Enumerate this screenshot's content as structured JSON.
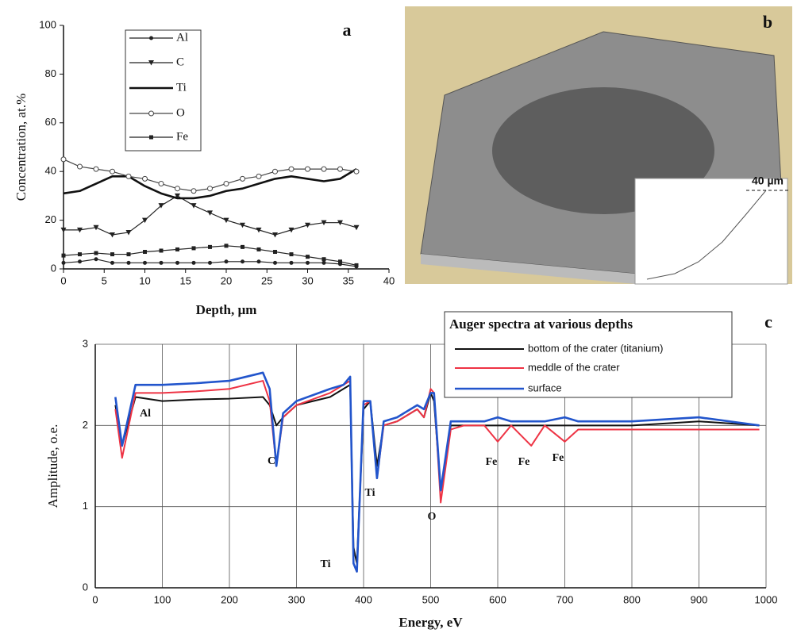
{
  "chart_data": [
    {
      "type": "line",
      "panel_label": "a",
      "xlabel": "Depth, µm",
      "ylabel": "Concentration, at.%",
      "x": [
        0,
        2,
        4,
        6,
        8,
        10,
        12,
        14,
        16,
        18,
        20,
        22,
        24,
        26,
        28,
        30,
        32,
        34,
        36
      ],
      "xlim": [
        0,
        40
      ],
      "xticks": [
        0,
        5,
        10,
        15,
        20,
        25,
        30,
        35,
        40
      ],
      "ylim": [
        0,
        100
      ],
      "yticks": [
        0,
        20,
        40,
        60,
        80,
        100
      ],
      "grid": false,
      "series": [
        {
          "name": "Al",
          "color": "#222222",
          "marker": "dot",
          "width": 1.2,
          "values": [
            2.5,
            3,
            4,
            2.5,
            2.5,
            2.5,
            2.5,
            2.5,
            2.5,
            2.5,
            3,
            3,
            3,
            2.5,
            2.5,
            2.5,
            2.5,
            2,
            1
          ]
        },
        {
          "name": "C",
          "color": "#222222",
          "marker": "triangle",
          "width": 1.2,
          "values": [
            16,
            16,
            17,
            14,
            15,
            20,
            26,
            30,
            26,
            23,
            20,
            18,
            16,
            14,
            16,
            18,
            19,
            19,
            17
          ]
        },
        {
          "name": "Ti",
          "color": "#111111",
          "marker": "none",
          "width": 2.6,
          "values": [
            31,
            32,
            35,
            38,
            38,
            34,
            31,
            29,
            29,
            30,
            32,
            33,
            35,
            37,
            38,
            37,
            36,
            37,
            41
          ]
        },
        {
          "name": "O",
          "color": "#444444",
          "marker": "open-circle",
          "width": 1.2,
          "values": [
            45,
            42,
            41,
            40,
            38,
            37,
            35,
            33,
            32,
            33,
            35,
            37,
            38,
            40,
            41,
            41,
            41,
            41,
            40
          ]
        },
        {
          "name": "Fe",
          "color": "#222222",
          "marker": "square",
          "width": 1.2,
          "values": [
            5.5,
            6,
            6.5,
            6,
            6,
            7,
            7.5,
            8,
            8.5,
            9,
            9.5,
            9,
            8,
            7,
            6,
            5,
            4,
            3,
            1.5
          ]
        }
      ]
    },
    {
      "type": "line",
      "panel_label": "c",
      "xlabel": "Energy, eV",
      "ylabel": "Amplitude, o.e.",
      "legend_title": "Auger spectra at various depths",
      "x": [
        30,
        40,
        60,
        100,
        150,
        200,
        250,
        260,
        270,
        280,
        300,
        350,
        370,
        380,
        385,
        390,
        400,
        410,
        420,
        430,
        450,
        480,
        490,
        500,
        505,
        515,
        530,
        550,
        580,
        600,
        620,
        650,
        670,
        700,
        720,
        800,
        900,
        990
      ],
      "xlim": [
        0,
        1000
      ],
      "xticks": [
        0,
        100,
        200,
        300,
        400,
        500,
        600,
        700,
        800,
        900,
        1000
      ],
      "ylim": [
        0,
        3
      ],
      "yticks": [
        0,
        1,
        2,
        3
      ],
      "grid": true,
      "annotations": [
        "Al",
        "C",
        "Ti",
        "Ti",
        "O",
        "Fe",
        "Fe",
        "Fe"
      ],
      "series": [
        {
          "name": "bottom of the crater (titanium)",
          "color": "#111111",
          "width": 2,
          "values": [
            2.25,
            1.75,
            2.35,
            2.3,
            2.32,
            2.33,
            2.35,
            2.25,
            2.0,
            2.1,
            2.25,
            2.35,
            2.45,
            2.5,
            0.5,
            0.3,
            2.2,
            2.3,
            1.5,
            2.0,
            2.05,
            2.2,
            2.1,
            2.4,
            2.3,
            1.2,
            2.0,
            2.0,
            2.0,
            2.0,
            2.0,
            2.0,
            2.0,
            2.0,
            2.0,
            2.0,
            2.05,
            2.0
          ]
        },
        {
          "name": "meddle of the crater",
          "color": "#ee3344",
          "width": 2,
          "values": [
            2.2,
            1.6,
            2.4,
            2.4,
            2.42,
            2.45,
            2.55,
            2.3,
            1.5,
            2.1,
            2.25,
            2.4,
            2.5,
            2.55,
            0.3,
            0.2,
            2.25,
            2.3,
            1.35,
            2.0,
            2.05,
            2.2,
            2.1,
            2.45,
            2.4,
            1.05,
            1.95,
            2.0,
            2.0,
            1.8,
            2.0,
            1.75,
            2.0,
            1.8,
            1.95,
            1.95,
            1.95,
            1.95
          ]
        },
        {
          "name": "surface",
          "color": "#2255cc",
          "width": 2.6,
          "values": [
            2.35,
            1.75,
            2.5,
            2.5,
            2.52,
            2.55,
            2.65,
            2.45,
            1.5,
            2.15,
            2.3,
            2.45,
            2.5,
            2.6,
            0.3,
            0.2,
            2.3,
            2.3,
            1.35,
            2.05,
            2.1,
            2.25,
            2.2,
            2.4,
            2.4,
            1.2,
            2.05,
            2.05,
            2.05,
            2.1,
            2.05,
            2.05,
            2.05,
            2.1,
            2.05,
            2.05,
            2.1,
            2.0
          ]
        }
      ]
    }
  ],
  "image_panel": {
    "label": "b",
    "scale_label": "40 µm"
  }
}
